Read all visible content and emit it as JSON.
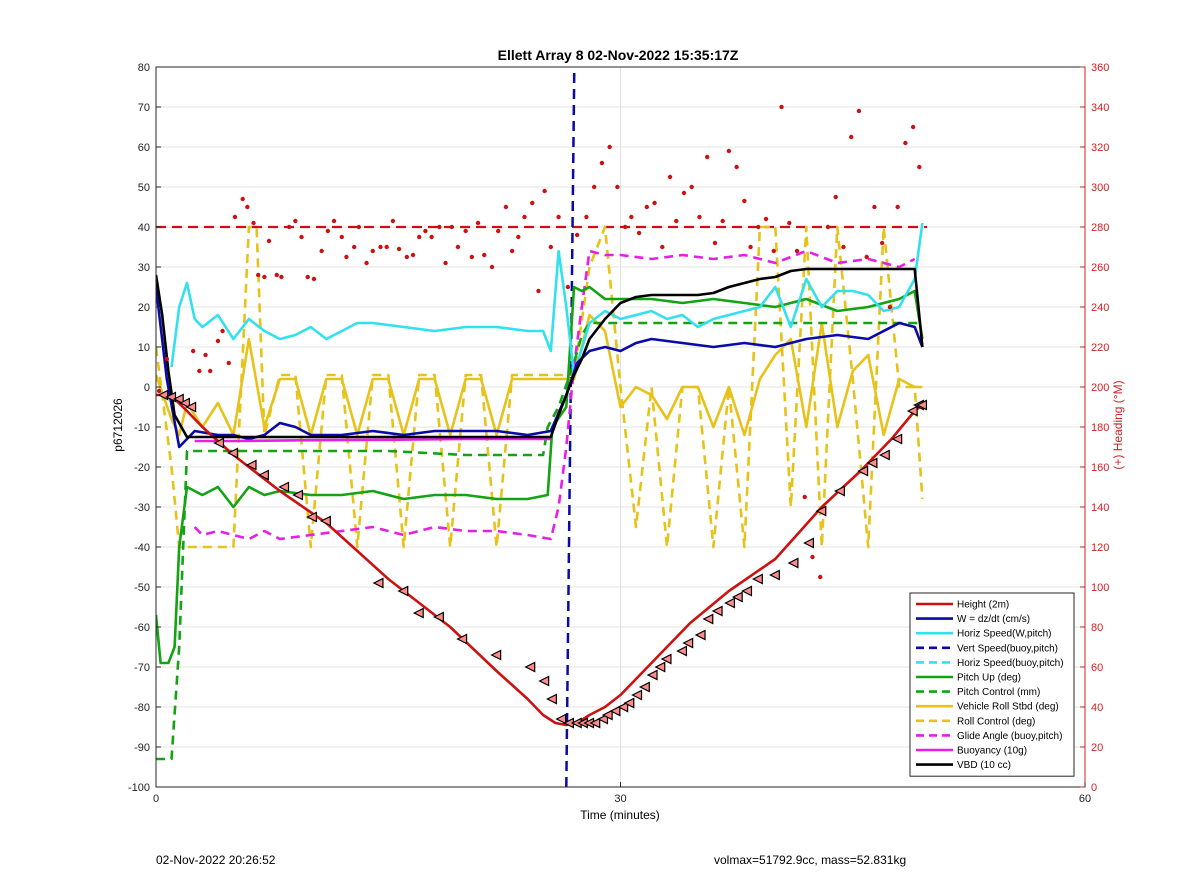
{
  "chart_data": {
    "type": "line",
    "title": "Ellett Array 8 02-Nov-2022 15:35:17Z",
    "xlabel": "Time (minutes)",
    "ylabel": "p6712026",
    "y2label": "(+) Heading (°M)",
    "xlim": [
      0,
      60
    ],
    "ylim": [
      -100,
      80
    ],
    "y2lim": [
      0,
      360
    ],
    "xticks": [
      0,
      30,
      60
    ],
    "yticks": [
      -100,
      -90,
      -80,
      -70,
      -60,
      -50,
      -40,
      -30,
      -20,
      -10,
      0,
      10,
      20,
      30,
      40,
      50,
      60,
      70,
      80
    ],
    "y2ticks": [
      0,
      20,
      40,
      60,
      80,
      100,
      120,
      140,
      160,
      180,
      200,
      220,
      240,
      260,
      280,
      300,
      320,
      340,
      360
    ],
    "grid": true,
    "legend_position": "bottom-right",
    "colors": {
      "red": "#cc1111",
      "blue": "#0a0aa8",
      "cyan": "#33e0ee",
      "green": "#13a313",
      "yellow": "#e6c21a",
      "magenta": "#e61ee6",
      "black": "#000000",
      "heading_axis": "#cc2222"
    },
    "vertical_line": {
      "x": 26.5,
      "color": "#0a0aa8",
      "style": "dashed"
    },
    "series": [
      {
        "name": "Height (2m)",
        "color": "#cc1111",
        "style": "solid",
        "x": [
          0,
          0.5,
          1.2,
          2,
          3,
          5,
          8,
          11,
          15,
          19,
          22,
          24,
          25,
          25.8,
          26.5,
          27.2,
          28,
          29,
          30,
          31,
          32.5,
          34.5,
          37,
          40,
          43,
          45.5,
          47.5,
          49,
          49.5
        ],
        "values": [
          -2,
          -2,
          -3,
          -6,
          -10,
          -17,
          -26,
          -34,
          -48,
          -60,
          -71,
          -78,
          -82,
          -84,
          -84.5,
          -84,
          -82,
          -80,
          -77,
          -73,
          -67,
          -59,
          -51,
          -43,
          -30,
          -21,
          -13,
          -6,
          -4.5
        ]
      },
      {
        "name": "W = dz/dt (cm/s)",
        "color": "#0a0aa8",
        "style": "solid",
        "x": [
          0,
          0.7,
          1.5,
          2.5,
          4,
          5,
          6,
          7,
          8,
          9,
          10,
          12,
          14,
          16,
          18,
          20,
          22,
          24,
          25.5,
          26.5,
          27.2,
          28,
          29,
          30,
          31,
          32,
          34,
          36,
          38,
          40,
          42,
          44,
          46,
          48,
          49,
          49.5
        ],
        "values": [
          25,
          2,
          -15,
          -11,
          -12,
          -12,
          -13,
          -12,
          -9,
          -10,
          -12,
          -12,
          -11,
          -12,
          -11,
          -11,
          -11,
          -12,
          -11,
          -2,
          6,
          9,
          10,
          9,
          11,
          12,
          11,
          10,
          11,
          10,
          12,
          13,
          12,
          16,
          15,
          10
        ]
      },
      {
        "name": "Horiz Speed(W,pitch)",
        "color": "#33e0ee",
        "style": "solid",
        "x": [
          1,
          1.5,
          2,
          2.5,
          3,
          4,
          5,
          6,
          7,
          8,
          9,
          10,
          11,
          12,
          13,
          14,
          16,
          18,
          20,
          22,
          24,
          25,
          25.5,
          26,
          26.5,
          27,
          28,
          29,
          30,
          31,
          32,
          33,
          34,
          35,
          36,
          38,
          39,
          40,
          41,
          42,
          43,
          44,
          45,
          46,
          47,
          48,
          49,
          49.5
        ],
        "values": [
          5,
          20,
          26,
          17,
          15,
          18,
          12,
          17,
          14,
          12,
          13,
          15,
          12,
          14,
          16,
          16,
          15,
          14,
          15,
          15,
          14,
          14,
          9,
          34,
          20,
          3,
          16,
          19,
          17,
          18,
          19,
          17,
          18,
          15,
          17,
          19,
          20,
          25,
          15,
          27,
          20,
          24,
          24,
          23,
          19,
          20,
          27,
          41
        ]
      },
      {
        "name": "Vert Speed(buoy,pitch)",
        "color": "#0a0aa8",
        "style": "dashed",
        "x": [
          26.5,
          26.5
        ],
        "values": [
          -100,
          80
        ]
      },
      {
        "name": "Horiz Speed(buoy,pitch)",
        "color": "#33e0ee",
        "style": "dashed",
        "x": [],
        "values": []
      },
      {
        "name": "Pitch Up (deg)",
        "color": "#13a313",
        "style": "solid",
        "x": [
          0,
          0.3,
          0.8,
          1.2,
          1.5,
          2,
          3,
          4,
          5,
          6,
          7,
          8,
          10,
          12,
          14,
          16,
          18,
          20,
          22,
          24,
          25.3,
          25.6,
          26.5,
          27,
          27.5,
          28,
          29,
          30,
          32,
          34,
          36,
          38,
          40,
          42,
          44,
          46,
          48,
          49,
          49.5
        ],
        "values": [
          -57,
          -69,
          -69,
          -65,
          -40,
          -25,
          -27,
          -25,
          -30,
          -25,
          -27,
          -26,
          -27,
          -27,
          -26,
          -28,
          -27,
          -27,
          -28,
          -28,
          -27,
          -10,
          -5,
          25,
          24,
          25,
          22,
          22,
          22,
          21,
          22,
          21,
          20,
          22,
          19,
          20,
          22,
          24,
          12
        ]
      },
      {
        "name": "Pitch Control (mm)",
        "color": "#13a313",
        "style": "dashed",
        "x": [
          0,
          1,
          1.5,
          2,
          5,
          10,
          15,
          20,
          25,
          25.3,
          26,
          27,
          27.5,
          28,
          29,
          30,
          35,
          40,
          45,
          49,
          49.5
        ],
        "values": [
          -93,
          -93,
          -65,
          -16,
          -16,
          -16,
          -16,
          -17,
          -17,
          -10,
          -5,
          6,
          13,
          16,
          16,
          16,
          16,
          16,
          16,
          16,
          16
        ]
      },
      {
        "name": "Vehicle Roll Stbd (deg)",
        "color": "#e6c21a",
        "style": "solid",
        "x": [
          0,
          1,
          1.5,
          2,
          3,
          4,
          5,
          6,
          7,
          8,
          9,
          10,
          11,
          12,
          13,
          14,
          15,
          16,
          17,
          18,
          19,
          20,
          21,
          22,
          23,
          24,
          25,
          26,
          27,
          28,
          29,
          30,
          31,
          32,
          33,
          34,
          35,
          36,
          37,
          38,
          39,
          40,
          41,
          42,
          43,
          44,
          45,
          46,
          47,
          48,
          49,
          49.5
        ],
        "values": [
          3,
          -8,
          -12,
          -4,
          -10,
          -4,
          -12,
          12,
          -10,
          2,
          2,
          -12,
          2,
          2,
          -12,
          2,
          2,
          -12,
          2,
          2,
          -12,
          2,
          2,
          -12,
          2,
          2,
          2,
          2,
          2,
          18,
          14,
          -5,
          0,
          -2,
          -8,
          0,
          0,
          -10,
          0,
          -12,
          2,
          8,
          12,
          -10,
          16,
          -10,
          4,
          8,
          -12,
          2,
          0,
          0
        ]
      },
      {
        "name": "Roll Control (deg)",
        "color": "#e6c21a",
        "style": "dashed",
        "x": [
          0,
          1,
          1.5,
          2,
          3,
          4,
          5,
          6,
          6.5,
          7,
          8,
          9,
          10,
          11,
          12,
          13,
          14,
          15,
          16,
          17,
          18,
          19,
          20,
          21,
          22,
          23,
          24,
          25,
          26,
          27,
          28,
          29,
          30,
          31,
          32,
          33,
          34,
          35,
          36,
          37,
          38,
          39,
          40,
          41,
          42,
          43,
          44,
          45,
          46,
          47,
          48,
          49,
          49.5
        ],
        "values": [
          10,
          -20,
          -40,
          -40,
          -40,
          -40,
          -40,
          40,
          40,
          -12,
          3,
          3,
          -40,
          3,
          3,
          -40,
          3,
          3,
          -40,
          3,
          3,
          -40,
          3,
          3,
          -40,
          3,
          3,
          3,
          3,
          3,
          30,
          40,
          0,
          -35,
          0,
          -40,
          0,
          0,
          -40,
          0,
          -40,
          40,
          40,
          -30,
          40,
          -40,
          40,
          2,
          -40,
          40,
          0,
          0,
          -28
        ]
      },
      {
        "name": "Glide Angle (buoy,pitch)",
        "color": "#e61ee6",
        "style": "dashed",
        "x": [
          2.5,
          3,
          4,
          5,
          6,
          7,
          8,
          10,
          12,
          14,
          16,
          18,
          20,
          22,
          24,
          25.5,
          26,
          26.5,
          27,
          27.5,
          28,
          29,
          30,
          32,
          34,
          36,
          38,
          40,
          42,
          44,
          46,
          48,
          49
        ],
        "values": [
          -35,
          -37,
          -36,
          -37,
          -38,
          -36,
          -38,
          -37,
          -36,
          -35,
          -37,
          -35,
          -36,
          -36,
          -37,
          -38,
          -30,
          -15,
          5,
          20,
          34,
          33,
          33,
          32,
          33,
          32,
          33,
          31,
          34,
          31,
          32,
          30,
          32
        ]
      },
      {
        "name": "Buoyancy (10g)",
        "color": "#e61ee6",
        "style": "solid",
        "x": [
          2.5,
          5,
          10,
          15,
          20,
          25.5
        ],
        "values": [
          -13.5,
          -13.5,
          -13.3,
          -13.2,
          -13.0,
          -13.0
        ]
      },
      {
        "name": "VBD (10 cc)",
        "color": "#000000",
        "style": "solid",
        "x": [
          0,
          0.4,
          0.8,
          1.2,
          2,
          5,
          10,
          15,
          20,
          25.5,
          26,
          26.5,
          27,
          27.5,
          28,
          29,
          30,
          31,
          32,
          33,
          35,
          36,
          37,
          37.5,
          38,
          39,
          40,
          41,
          42,
          43,
          45,
          49,
          49.5
        ],
        "values": [
          28,
          18,
          4,
          -7,
          -12.5,
          -12.5,
          -12.5,
          -12.5,
          -12.5,
          -12.5,
          -7,
          -2,
          3,
          7,
          12,
          17,
          21,
          22.5,
          23,
          23,
          23,
          23.5,
          25,
          25.5,
          26,
          27,
          27.5,
          29,
          29.5,
          29.5,
          29.5,
          29.5,
          10
        ]
      }
    ],
    "reference_lines": [
      {
        "y2": 280,
        "color": "#cc1111",
        "style": "dashed"
      }
    ],
    "heading_points": {
      "color": "#cc1111",
      "axis": "right",
      "x": [
        0.2,
        0.7,
        2.4,
        2.8,
        3.2,
        3.5,
        4.0,
        4.3,
        4.7,
        5.1,
        5.6,
        5.9,
        6.3,
        6.6,
        7.0,
        7.3,
        7.8,
        8.1,
        8.6,
        9.0,
        9.4,
        9.8,
        10.2,
        10.7,
        11.1,
        11.5,
        12.0,
        12.3,
        12.8,
        13.1,
        13.6,
        14.0,
        14.5,
        14.9,
        15.3,
        15.7,
        16.2,
        16.6,
        17.0,
        17.4,
        17.8,
        18.3,
        18.7,
        19.1,
        19.5,
        20.0,
        20.4,
        20.8,
        21.2,
        21.7,
        22.1,
        22.6,
        23.0,
        23.4,
        23.8,
        24.3,
        24.7,
        25.1,
        25.5,
        26.0,
        26.6,
        27.2,
        27.8,
        28.3,
        28.8,
        29.3,
        29.8,
        30.3,
        30.7,
        31.2,
        31.7,
        32.2,
        32.7,
        33.2,
        33.6,
        34.1,
        34.6,
        35.1,
        35.6,
        36.1,
        36.6,
        37.0,
        37.5,
        38.0,
        38.4,
        38.9,
        39.4,
        39.9,
        40.4,
        40.9,
        41.4,
        41.9,
        42.4,
        42.9,
        43.4,
        43.9,
        44.4,
        44.9,
        45.4,
        45.9,
        46.4,
        46.9,
        47.4,
        47.9,
        48.4,
        48.9,
        49.3
      ],
      "y": [
        198,
        214,
        218,
        208,
        216,
        208,
        223,
        228,
        212,
        285,
        294,
        290,
        282,
        256,
        255,
        273,
        256,
        255,
        280,
        283,
        275,
        255,
        254,
        268,
        278,
        283,
        275,
        265,
        270,
        280,
        262,
        268,
        270,
        270,
        283,
        269,
        265,
        266,
        275,
        278,
        275,
        280,
        262,
        280,
        270,
        278,
        265,
        282,
        266,
        260,
        278,
        290,
        268,
        275,
        285,
        292,
        248,
        298,
        270,
        285,
        250,
        276,
        285,
        300,
        312,
        320,
        300,
        280,
        285,
        277,
        290,
        292,
        270,
        305,
        283,
        297,
        300,
        285,
        315,
        272,
        283,
        318,
        310,
        293,
        270,
        280,
        284,
        268,
        340,
        282,
        268,
        145,
        115,
        105,
        280,
        295,
        270,
        325,
        338,
        265,
        290,
        272,
        240,
        290,
        322,
        330,
        310
      ]
    },
    "triangle_markers": {
      "color": "#000000",
      "fill": "#ff8b8b",
      "x": [
        0.5,
        1.0,
        1.5,
        1.9,
        2.3,
        4.1,
        5.0,
        6.2,
        7.0,
        8.3,
        9.2,
        10.1,
        11.0,
        14.4,
        16.0,
        17.0,
        18.3,
        19.8,
        22.0,
        24.2,
        25.1,
        25.6,
        26.2,
        26.7,
        27.2,
        27.6,
        28.0,
        28.4,
        28.9,
        29.2,
        29.7,
        30.2,
        30.6,
        31.1,
        31.6,
        32.1,
        32.6,
        33.0,
        34.0,
        34.4,
        35.2,
        35.7,
        36.3,
        37.1,
        37.6,
        38.2,
        38.9,
        40.0,
        41.2,
        42.2,
        43.0,
        44.2,
        45.7,
        46.3,
        47.1,
        47.9,
        48.9,
        49.3,
        49.5
      ],
      "values": [
        -2,
        -2.5,
        -3,
        -4,
        -5,
        -14,
        -16.5,
        -19.5,
        -22,
        -25,
        -27,
        -32.5,
        -33.5,
        -49,
        -51,
        -56.5,
        -57.5,
        -63,
        -67,
        -70,
        -73.5,
        -78,
        -83,
        -84,
        -84,
        -84,
        -84,
        -84,
        -83,
        -82,
        -81,
        -80,
        -79,
        -77,
        -75,
        -72,
        -70,
        -68,
        -66,
        -64,
        -62,
        -58,
        -56,
        -54,
        -52.5,
        -51,
        -48,
        -47,
        -44,
        -39,
        -31,
        -26,
        -21,
        -19,
        -17,
        -13,
        -6,
        -4.5,
        -4.5
      ]
    },
    "footer_left": "02-Nov-2022 20:26:52",
    "footer_right": "volmax=51792.9cc, mass=52.831kg"
  }
}
